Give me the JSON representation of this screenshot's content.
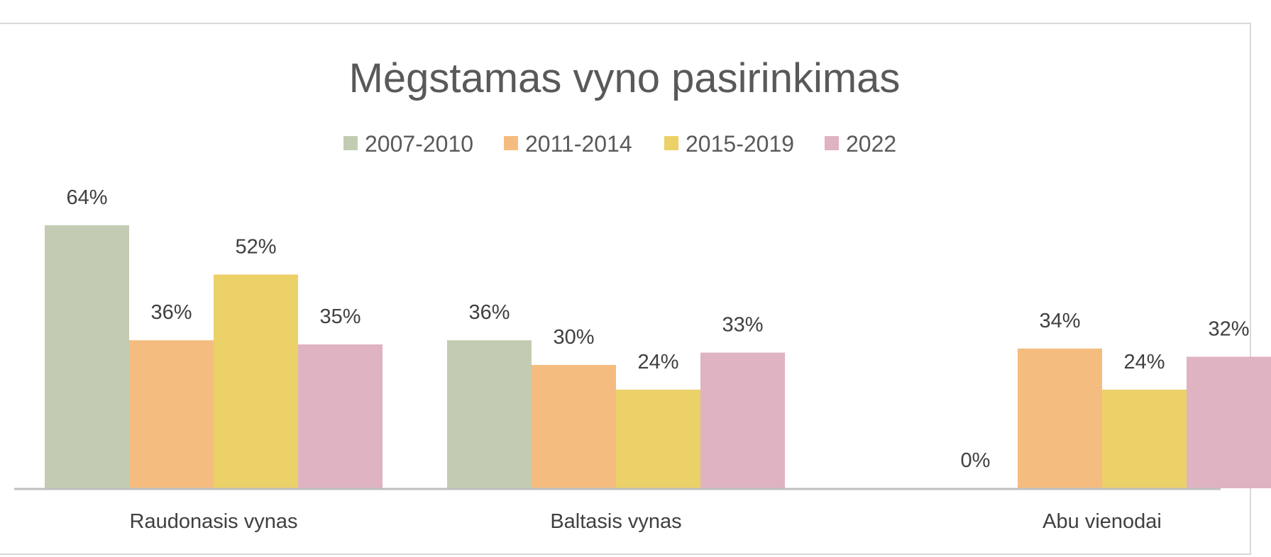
{
  "chart_data": {
    "type": "bar",
    "title": "Mėgstamas vyno pasirinkimas",
    "categories": [
      "Raudonasis vynas",
      "Baltasis vynas",
      "Abu vienodai"
    ],
    "series": [
      {
        "name": "2007-2010",
        "values": [
          64,
          36,
          0
        ],
        "labels": [
          "64%",
          "36%",
          "0%"
        ],
        "color": "#c3ccb2"
      },
      {
        "name": "2011-2014",
        "values": [
          36,
          30,
          34
        ],
        "labels": [
          "36%",
          "30%",
          "34%"
        ],
        "color": "#f5bc7f"
      },
      {
        "name": "2015-2019",
        "values": [
          52,
          24,
          24
        ],
        "labels": [
          "52%",
          "24%",
          "24%"
        ],
        "color": "#ecd068"
      },
      {
        "name": "2022",
        "values": [
          35,
          33,
          32
        ],
        "labels": [
          "35%",
          "33%",
          "32%"
        ],
        "color": "#dfb3c1"
      }
    ],
    "xlabel": "",
    "ylabel": "",
    "ylim": [
      0,
      70
    ],
    "grid": false,
    "legend_position": "top-center",
    "axis_color": "#bfbfbf"
  }
}
